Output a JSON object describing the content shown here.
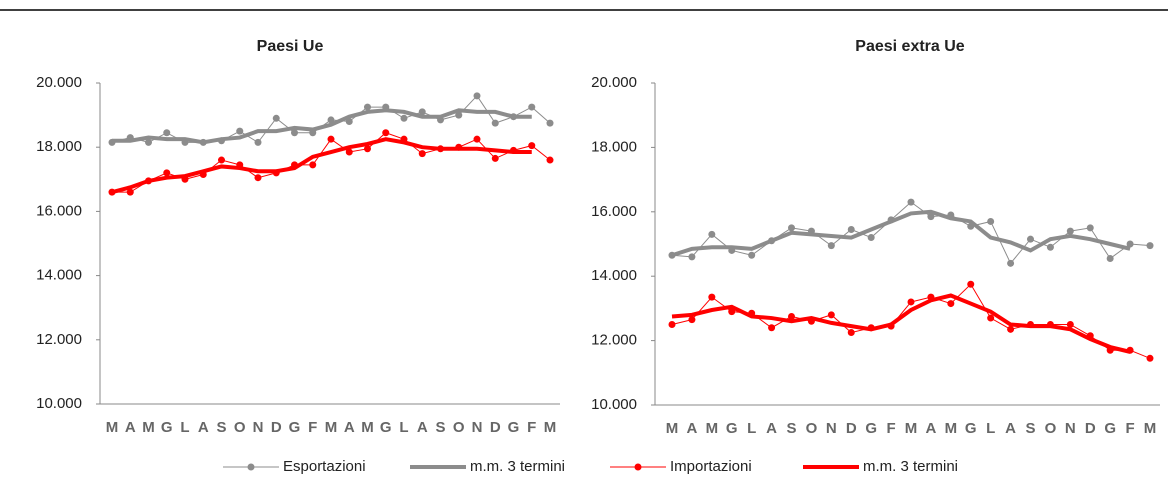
{
  "chart_data": [
    {
      "type": "line",
      "title": "Paesi Ue",
      "categories": [
        "M",
        "A",
        "M",
        "G",
        "L",
        "A",
        "S",
        "O",
        "N",
        "D",
        "G",
        "F",
        "M",
        "A",
        "M",
        "G",
        "L",
        "A",
        "S",
        "O",
        "N",
        "D",
        "G",
        "F",
        "M"
      ],
      "ylim": [
        10000,
        20000
      ],
      "yticks": [
        {
          "value": 10000,
          "label": "10.000"
        },
        {
          "value": 12000,
          "label": "12.000"
        },
        {
          "value": 14000,
          "label": "14.000"
        },
        {
          "value": 16000,
          "label": "16.000"
        },
        {
          "value": 18000,
          "label": "18.000"
        },
        {
          "value": 20000,
          "label": "20.000"
        }
      ],
      "series": [
        {
          "name": "Esportazioni",
          "color": "#8c8c8c",
          "values": [
            18150,
            18300,
            18150,
            18450,
            18150,
            18150,
            18200,
            18500,
            18150,
            18900,
            18450,
            18450,
            18850,
            18800,
            19250,
            19250,
            18900,
            19100,
            18850,
            19000,
            19600,
            18750,
            18950,
            19250,
            18750
          ]
        },
        {
          "name": "m.m. 3 termini",
          "color": "#8c8c8c",
          "values": [
            18200,
            18200,
            18300,
            18250,
            18250,
            18150,
            18250,
            18300,
            18500,
            18500,
            18600,
            18550,
            18700,
            18950,
            19100,
            19150,
            19100,
            18950,
            18950,
            19150,
            19100,
            19100,
            18950,
            18950,
            null
          ]
        },
        {
          "name": "Importazioni",
          "color": "#ff0000",
          "values": [
            16600,
            16600,
            16950,
            17200,
            17000,
            17150,
            17600,
            17450,
            17050,
            17200,
            17450,
            17450,
            18250,
            17850,
            17950,
            18450,
            18250,
            17800,
            17950,
            18000,
            18250,
            17650,
            17900,
            18050,
            17600
          ]
        },
        {
          "name": "m.m. 3 termini",
          "color": "#ff0000",
          "values": [
            16600,
            16750,
            16950,
            17050,
            17100,
            17250,
            17400,
            17350,
            17250,
            17250,
            17350,
            17700,
            17850,
            18000,
            18100,
            18250,
            18150,
            18000,
            17950,
            17950,
            17950,
            17900,
            17850,
            17850,
            null
          ]
        }
      ]
    },
    {
      "type": "line",
      "title": "Paesi extra Ue",
      "categories": [
        "M",
        "A",
        "M",
        "G",
        "L",
        "A",
        "S",
        "O",
        "N",
        "D",
        "G",
        "F",
        "M",
        "A",
        "M",
        "G",
        "L",
        "A",
        "S",
        "O",
        "N",
        "D",
        "G",
        "F",
        "M"
      ],
      "ylim": [
        10000,
        20000
      ],
      "yticks": [
        {
          "value": 10000,
          "label": "10.000"
        },
        {
          "value": 12000,
          "label": "12.000"
        },
        {
          "value": 14000,
          "label": "14.000"
        },
        {
          "value": 16000,
          "label": "16.000"
        },
        {
          "value": 18000,
          "label": "18.000"
        },
        {
          "value": 20000,
          "label": "20.000"
        }
      ],
      "series": [
        {
          "name": "Esportazioni",
          "color": "#8c8c8c",
          "values": [
            14650,
            14600,
            15300,
            14800,
            14650,
            15100,
            15500,
            15400,
            14950,
            15450,
            15200,
            15750,
            16300,
            15850,
            15900,
            15550,
            15700,
            14400,
            15150,
            14900,
            15400,
            15500,
            14550,
            15000,
            14950
          ]
        },
        {
          "name": "m.m. 3 termini",
          "color": "#8c8c8c",
          "values": [
            14650,
            14850,
            14900,
            14900,
            14850,
            15100,
            15350,
            15300,
            15250,
            15200,
            15450,
            15700,
            15950,
            16000,
            15800,
            15700,
            15200,
            15050,
            14800,
            15150,
            15250,
            15150,
            15000,
            14850,
            null
          ]
        },
        {
          "name": "Importazioni",
          "color": "#ff0000",
          "values": [
            12500,
            12650,
            13350,
            12900,
            12850,
            12400,
            12750,
            12600,
            12800,
            12250,
            12400,
            12450,
            13200,
            13350,
            13150,
            13750,
            12700,
            12350,
            12500,
            12500,
            12500,
            12150,
            11700,
            11700,
            11450
          ]
        },
        {
          "name": "m.m. 3 termini",
          "color": "#ff0000",
          "values": [
            12750,
            12800,
            12950,
            13050,
            12750,
            12700,
            12600,
            12700,
            12550,
            12450,
            12350,
            12500,
            12950,
            13250,
            13400,
            13150,
            12900,
            12500,
            12450,
            12450,
            12350,
            12050,
            11800,
            11650,
            null
          ]
        }
      ]
    }
  ]
}
